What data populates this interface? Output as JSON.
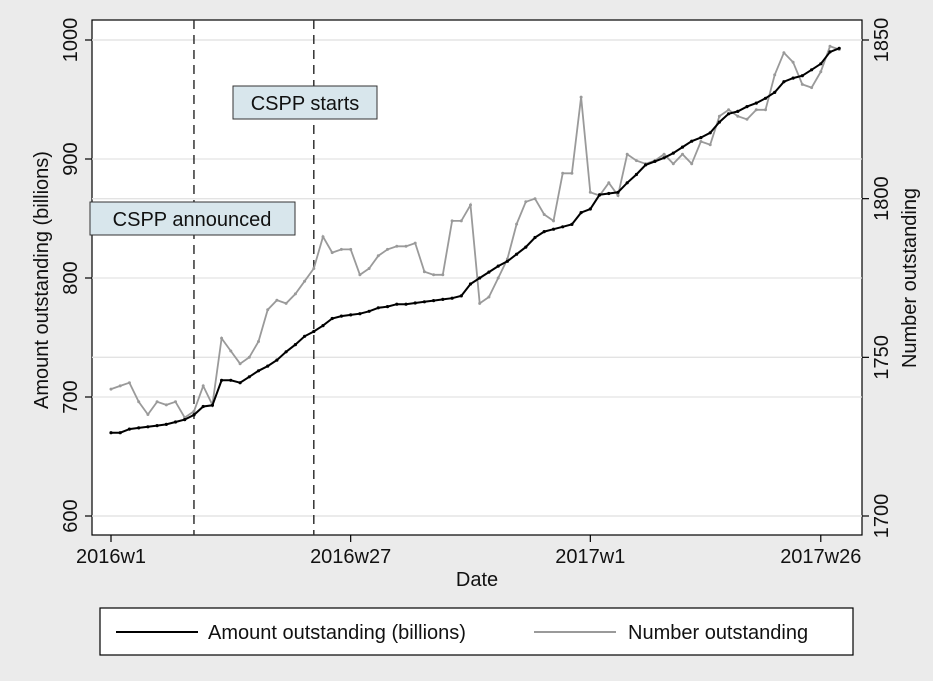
{
  "chart_data": {
    "type": "line",
    "xlabel": "Date",
    "ylabel_left": "Amount outstanding (billions)",
    "ylabel_right": "Number outstanding",
    "x_ticks": [
      "2016w1",
      "2016w27",
      "2017w1",
      "2017w26"
    ],
    "x_tick_weeks": [
      1,
      27,
      53,
      78
    ],
    "xlim": [
      1,
      79
    ],
    "left_ticks": [
      600,
      700,
      800,
      900,
      1000
    ],
    "left_ylim": [
      600,
      1000
    ],
    "right_ticks": [
      1700,
      1750,
      1800,
      1850
    ],
    "right_ylim": [
      1700,
      1850
    ],
    "grid": "horizontal at left-axis ticks and right-axis ticks",
    "annotations": [
      {
        "label": "CSPP announced",
        "week": 10
      },
      {
        "label": "CSPP starts",
        "week": 23
      }
    ],
    "series": [
      {
        "name": "Amount outstanding (billions)",
        "axis": "left",
        "color": "#000000",
        "values": [
          670,
          670,
          673,
          674,
          675,
          676,
          677,
          679,
          681,
          685,
          692,
          693,
          714,
          714,
          712,
          717,
          722,
          726,
          731,
          738,
          744,
          751,
          755,
          760,
          766,
          768,
          769,
          770,
          772,
          775,
          776,
          778,
          778,
          779,
          780,
          781,
          782,
          783,
          785,
          795,
          800,
          805,
          810,
          814,
          820,
          826,
          834,
          839,
          841,
          843,
          845,
          855,
          858,
          870,
          871,
          872,
          880,
          887,
          895,
          898,
          901,
          905,
          910,
          915,
          918,
          922,
          931,
          938,
          940,
          944,
          947,
          951,
          956,
          965,
          968,
          970,
          975,
          980,
          990,
          993
        ]
      },
      {
        "name": "Number outstanding",
        "axis": "right",
        "color": "#9a9a9a",
        "values": [
          1740,
          1741,
          1742,
          1736,
          1732,
          1736,
          1735,
          1736,
          1731,
          1733,
          1741,
          1735,
          1756,
          1752,
          1748,
          1750,
          1755,
          1765,
          1768,
          1767,
          1770,
          1774,
          1778,
          1788,
          1783,
          1784,
          1784,
          1776,
          1778,
          1782,
          1784,
          1785,
          1785,
          1786,
          1777,
          1776,
          1776,
          1793,
          1793,
          1798,
          1767,
          1769,
          1775,
          1781,
          1792,
          1799,
          1800,
          1795,
          1793,
          1808,
          1808,
          1832,
          1802,
          1801,
          1805,
          1801,
          1814,
          1812,
          1811,
          1812,
          1814,
          1811,
          1814,
          1811,
          1818,
          1817,
          1826,
          1828,
          1826,
          1825,
          1828,
          1828,
          1839,
          1846,
          1843,
          1836,
          1835,
          1840,
          1848,
          1847
        ]
      }
    ]
  }
}
